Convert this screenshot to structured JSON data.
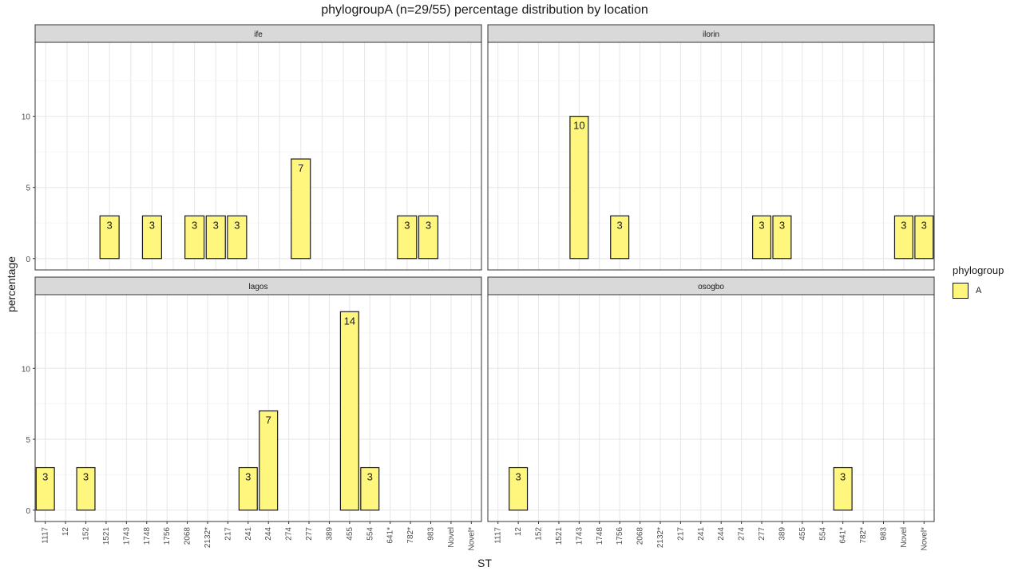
{
  "chart_data": {
    "type": "bar",
    "title": "phylogroupA (n=29/55) percentage distribution by location",
    "xlabel": "ST",
    "ylabel": "percentage",
    "ylim": [
      -0.8,
      15.2
    ],
    "yticks": [
      0,
      5,
      10
    ],
    "grid": true,
    "legend": {
      "title": "phylogroup",
      "entries": [
        "A"
      ],
      "placement": "right"
    },
    "bar_color": "#FFF67E",
    "bar_outline": "#1a1a1a",
    "panels": [
      {
        "name": "ife",
        "categories": [
          "1117",
          "12",
          "152",
          "1521",
          "1743",
          "1748",
          "1756",
          "2068",
          "2132*",
          "217",
          "241",
          "244",
          "274",
          "389",
          "455",
          "554",
          "641*",
          "782*",
          "983",
          "Novel",
          "Novel*"
        ],
        "bars": [
          {
            "category": "1521",
            "value": 3,
            "label": "3"
          },
          {
            "category": "1748",
            "value": 3,
            "label": "3"
          },
          {
            "category": "2068",
            "value": 3,
            "label": "3"
          },
          {
            "category": "2132*",
            "value": 3,
            "label": "3"
          },
          {
            "category": "217",
            "value": 3,
            "label": "3"
          },
          {
            "category": "274",
            "value": 7,
            "label": "7"
          },
          {
            "category": "782*",
            "value": 3,
            "label": "3"
          },
          {
            "category": "983",
            "value": 3,
            "label": "3"
          }
        ]
      },
      {
        "name": "ilorin",
        "categories": [
          "1117",
          "12",
          "152",
          "1521",
          "1743",
          "1748",
          "1756",
          "2068",
          "2132*",
          "217",
          "241",
          "244",
          "274",
          "277",
          "389",
          "455",
          "554",
          "641*",
          "782*",
          "983",
          "Novel",
          "Novel*"
        ],
        "bars": [
          {
            "category": "1743",
            "value": 10,
            "label": "10"
          },
          {
            "category": "1756",
            "value": 3,
            "label": "3"
          },
          {
            "category": "277",
            "value": 3,
            "label": "3"
          },
          {
            "category": "389",
            "value": 3,
            "label": "3"
          },
          {
            "category": "Novel",
            "value": 3,
            "label": "3"
          },
          {
            "category": "Novel*",
            "value": 3,
            "label": "3"
          }
        ]
      },
      {
        "name": "lagos",
        "categories": [
          "1117",
          "12",
          "152",
          "1521",
          "1743",
          "1748",
          "1756",
          "2068",
          "2132*",
          "217",
          "241",
          "244",
          "274",
          "277",
          "389",
          "455",
          "554",
          "641*",
          "782*",
          "983",
          "Novel",
          "Novel*"
        ],
        "bars": [
          {
            "category": "1117",
            "value": 3,
            "label": "3"
          },
          {
            "category": "152",
            "value": 3,
            "label": "3"
          },
          {
            "category": "241",
            "value": 3,
            "label": "3"
          },
          {
            "category": "244",
            "value": 7,
            "label": "7"
          },
          {
            "category": "455",
            "value": 14,
            "label": "14"
          },
          {
            "category": "554",
            "value": 3,
            "label": "3"
          }
        ]
      },
      {
        "name": "osogbo",
        "categories": [
          "1117",
          "12",
          "152",
          "1521",
          "1743",
          "1748",
          "1756",
          "2068",
          "2132*",
          "217",
          "241",
          "244",
          "274",
          "277",
          "389",
          "455",
          "554",
          "641*",
          "782*",
          "983",
          "Novel",
          "Novel*"
        ],
        "bars": [
          {
            "category": "12",
            "value": 3,
            "label": "3"
          },
          {
            "category": "641*",
            "value": 3,
            "label": "3"
          }
        ]
      }
    ]
  }
}
